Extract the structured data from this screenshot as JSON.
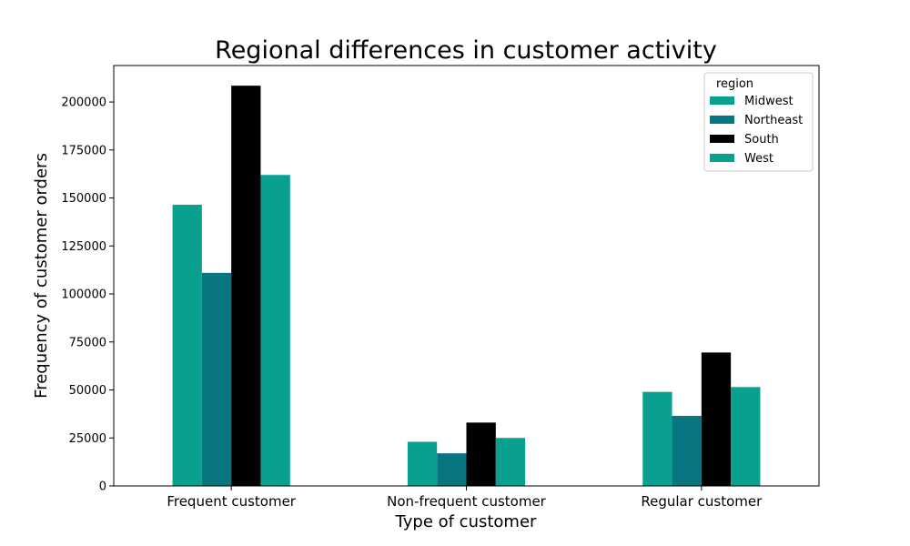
{
  "chart_data": {
    "type": "bar",
    "title": "Regional differences in customer activity",
    "xlabel": "Type of customer",
    "ylabel": "Frequency of customer orders",
    "categories": [
      "Frequent customer",
      "Non-frequent customer",
      "Regular customer"
    ],
    "series": [
      {
        "name": "Midwest",
        "color": "#0aa090",
        "values": [
          146500,
          23000,
          49000
        ]
      },
      {
        "name": "Northeast",
        "color": "#087680",
        "values": [
          111000,
          17000,
          36500
        ]
      },
      {
        "name": "South",
        "color": "#000000",
        "values": [
          208500,
          33000,
          69500
        ]
      },
      {
        "name": "West",
        "color": "#0aa090",
        "values": [
          162000,
          25000,
          51500
        ]
      }
    ],
    "ylim": [
      0,
      219000
    ],
    "yticks": [
      "0",
      "25000",
      "50000",
      "75000",
      "100000",
      "125000",
      "150000",
      "175000",
      "200000"
    ],
    "legend": {
      "title": "region",
      "position": "top-right"
    },
    "grid": false
  }
}
